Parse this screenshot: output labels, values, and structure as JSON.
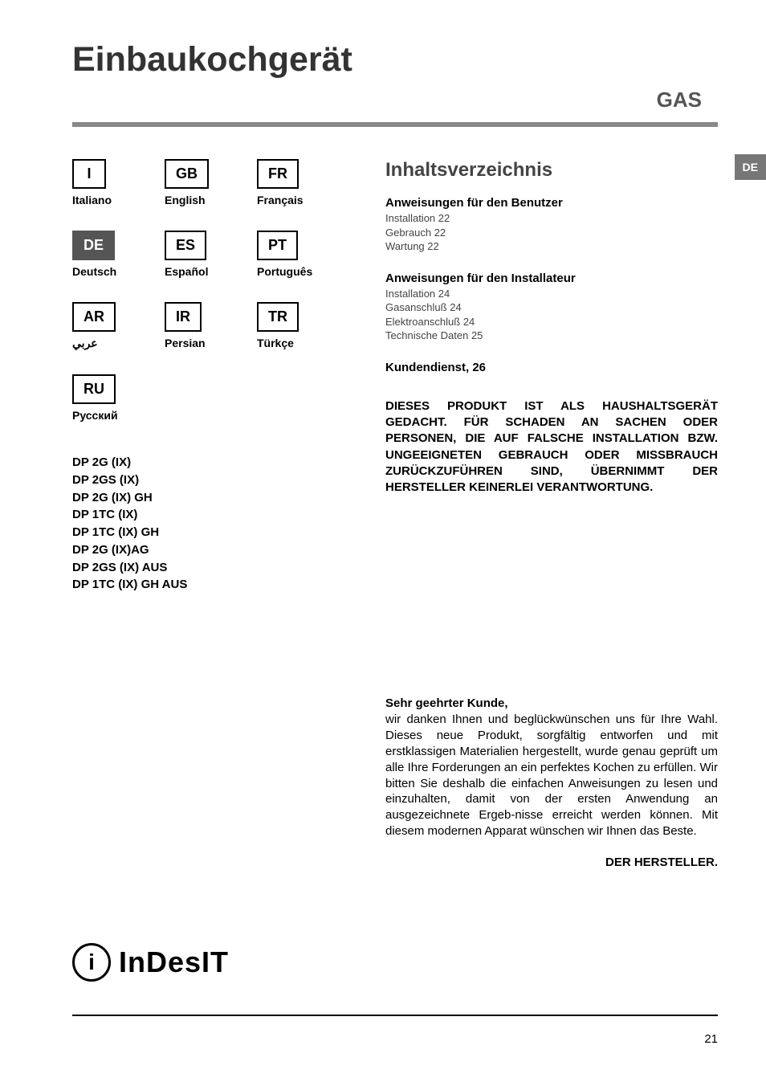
{
  "title": "Einbaukochgerät",
  "gas_label": "GAS",
  "side_tab": "DE",
  "languages": [
    {
      "code": "I",
      "name": "Italiano",
      "active": false
    },
    {
      "code": "GB",
      "name": "English",
      "active": false
    },
    {
      "code": "FR",
      "name": "Français",
      "active": false
    },
    {
      "code": "DE",
      "name": "Deutsch",
      "active": true
    },
    {
      "code": "ES",
      "name": "Español",
      "active": false
    },
    {
      "code": "PT",
      "name": "Português",
      "active": false
    },
    {
      "code": "AR",
      "name": "عربي",
      "active": false
    },
    {
      "code": "IR",
      "name": "Persian",
      "active": false
    },
    {
      "code": "TR",
      "name": "Türkçe",
      "active": false
    },
    {
      "code": "RU",
      "name": "Русский",
      "active": false
    }
  ],
  "models": [
    "DP 2G (IX)",
    "DP 2GS (IX)",
    "DP 2G (IX) GH",
    "DP 1TC (IX)",
    "DP 1TC (IX) GH",
    "DP 2G (IX)AG",
    "DP 2GS (IX) AUS",
    "DP 1TC (IX) GH AUS"
  ],
  "toc": {
    "title": "Inhaltsverzeichnis",
    "sections": [
      {
        "heading": "Anweisungen für den Benutzer",
        "items": [
          "Installation 22",
          "Gebrauch 22",
          "Wartung 22"
        ]
      },
      {
        "heading": "Anweisungen für den Installateur",
        "items": [
          "Installation 24",
          "Gasanschluß 24",
          "Elektroanschluß 24",
          "Technische Daten 25"
        ]
      }
    ],
    "service": "Kundendienst, 26"
  },
  "warning": "DIESES PRODUKT IST ALS HAUSHALTSGERÄT GEDACHT. FÜR SCHADEN AN SACHEN ODER PERSONEN, DIE AUF FALSCHE INSTALLATION BZW. UNGEEIGNETEN GEBRAUCH ODER MISSBRAUCH ZURÜCKZUFÜHREN SIND, ÜBERNIMMT DER HERSTELLER KEINERLEI VERANTWORTUNG.",
  "customer": {
    "greeting": "Sehr geehrter Kunde,",
    "text": "wir danken Ihnen und beglückwünschen uns für Ihre Wahl. Dieses neue Produkt, sorgfältig entworfen und mit erstklassigen Materialien hergestellt, wurde genau geprüft um alle Ihre Forderungen an ein perfektes Kochen zu erfüllen. Wir bitten Sie deshalb die einfachen Anweisungen zu lesen und einzuhalten, damit von der ersten Anwendung an ausgezeichnete Ergeb-nisse erreicht werden können. Mit diesem modernen Apparat wünschen wir Ihnen das Beste.",
    "signature": "DER HERSTELLER."
  },
  "logo": {
    "icon": "i",
    "text": "InDesIT"
  },
  "page_number": "21",
  "colors": {
    "divider": "#888888",
    "active_bg": "#555555",
    "text_muted": "#444444"
  }
}
